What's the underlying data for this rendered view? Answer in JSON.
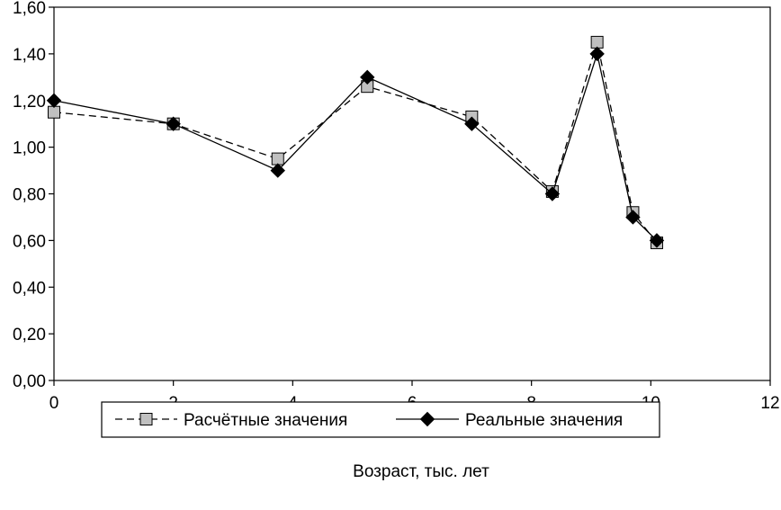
{
  "chart_data": {
    "type": "line",
    "title": "",
    "xlabel": "Возраст, тыс. лет",
    "ylabel": "",
    "xlim": [
      0,
      12
    ],
    "ylim": [
      0,
      1.6
    ],
    "x_ticks": [
      0,
      2,
      4,
      6,
      8,
      10,
      12
    ],
    "x_tick_labels": [
      "0",
      "2",
      "4",
      "6",
      "8",
      "10",
      "12"
    ],
    "y_ticks": [
      0,
      0.2,
      0.4,
      0.6,
      0.8,
      1.0,
      1.2,
      1.4,
      1.6
    ],
    "y_tick_labels": [
      "0,00",
      "0,20",
      "0,40",
      "0,60",
      "0,80",
      "1,00",
      "1,20",
      "1,40",
      "1,60"
    ],
    "grid": false,
    "legend_position": "bottom",
    "series": [
      {
        "name": "Расчётные значения",
        "line_style": "dashed",
        "marker": "square",
        "marker_color": "#c0c0c0",
        "x": [
          0.0,
          2.0,
          3.75,
          5.25,
          7.0,
          8.35,
          9.1,
          9.7,
          10.1
        ],
        "y": [
          1.15,
          1.1,
          0.95,
          1.26,
          1.13,
          0.81,
          1.45,
          0.72,
          0.59
        ]
      },
      {
        "name": "Реальные значения",
        "line_style": "solid",
        "marker": "diamond",
        "marker_color": "#000000",
        "x": [
          0.0,
          2.0,
          3.75,
          5.25,
          7.0,
          8.35,
          9.1,
          9.7,
          10.1
        ],
        "y": [
          1.2,
          1.1,
          0.9,
          1.3,
          1.1,
          0.8,
          1.4,
          0.7,
          0.6
        ]
      }
    ]
  }
}
